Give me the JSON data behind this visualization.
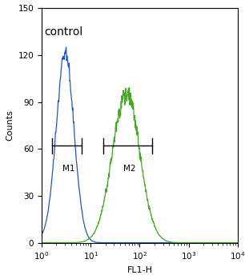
{
  "title": "",
  "xlabel": "FL1-H",
  "ylabel": "Counts",
  "xlim_log": [
    1,
    10000
  ],
  "ylim": [
    0,
    150
  ],
  "yticks": [
    0,
    30,
    60,
    90,
    120,
    150
  ],
  "control_label": "control",
  "blue_peak_log": 0.48,
  "blue_peak_y": 120,
  "blue_sigma": 0.18,
  "green_peak_log": 1.72,
  "green_peak_y": 95,
  "green_sigma": 0.28,
  "blue_color": "#2255cc",
  "green_color": "#44aa22",
  "m1_x_start": 1.6,
  "m1_x_end": 6.5,
  "m1_y": 62,
  "m2_x_start": 18,
  "m2_x_end": 180,
  "m2_y": 62,
  "bg_color": "#ffffff",
  "fig_width": 3.06,
  "fig_height": 3.49,
  "dpi": 100
}
